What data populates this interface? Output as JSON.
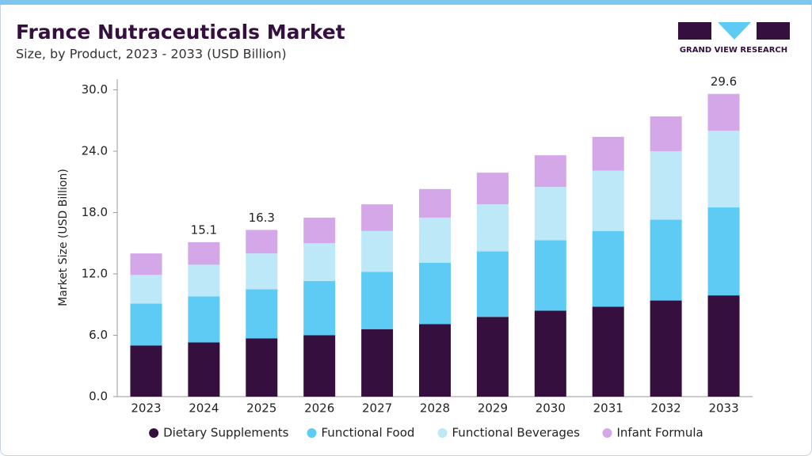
{
  "chart_data": {
    "type": "stacked_bar",
    "title": "France Nutraceuticals Market",
    "subtitle": "Size, by Product, 2023 - 2033 (USD Billion)",
    "brand": "GRAND VIEW RESEARCH",
    "y_label": "Market Size (USD Billion)",
    "categories": [
      "2023",
      "2024",
      "2025",
      "2026",
      "2027",
      "2028",
      "2029",
      "2030",
      "2031",
      "2032",
      "2033"
    ],
    "series": [
      {
        "name": "Dietary Supplements",
        "color": "#35103f",
        "values": [
          5.0,
          5.3,
          5.7,
          6.0,
          6.6,
          7.1,
          7.8,
          8.4,
          8.8,
          9.4,
          9.9
        ]
      },
      {
        "name": "Functional Food",
        "color": "#5ecbf5",
        "values": [
          4.1,
          4.5,
          4.8,
          5.3,
          5.6,
          6.0,
          6.4,
          6.9,
          7.4,
          7.9,
          8.6
        ]
      },
      {
        "name": "Functional Beverages",
        "color": "#bde8f8",
        "values": [
          2.8,
          3.1,
          3.5,
          3.7,
          4.0,
          4.4,
          4.6,
          5.2,
          5.9,
          6.7,
          7.5
        ]
      },
      {
        "name": "Infant Formula",
        "color": "#d4a8e8",
        "values": [
          2.1,
          2.2,
          2.3,
          2.5,
          2.6,
          2.8,
          3.1,
          3.1,
          3.3,
          3.4,
          3.6
        ]
      }
    ],
    "data_labels": [
      null,
      15.1,
      16.3,
      null,
      null,
      null,
      null,
      null,
      null,
      null,
      29.6
    ],
    "ylim": [
      0,
      30.5
    ],
    "yticks": [
      {
        "value": 0,
        "label": "0.0"
      },
      {
        "value": 6,
        "label": "6.0"
      },
      {
        "value": 12,
        "label": "12.0"
      },
      {
        "value": 18,
        "label": "18.0"
      },
      {
        "value": 24,
        "label": "24.0"
      },
      {
        "value": 30,
        "label": "30.0"
      }
    ],
    "legend": "bottom"
  }
}
